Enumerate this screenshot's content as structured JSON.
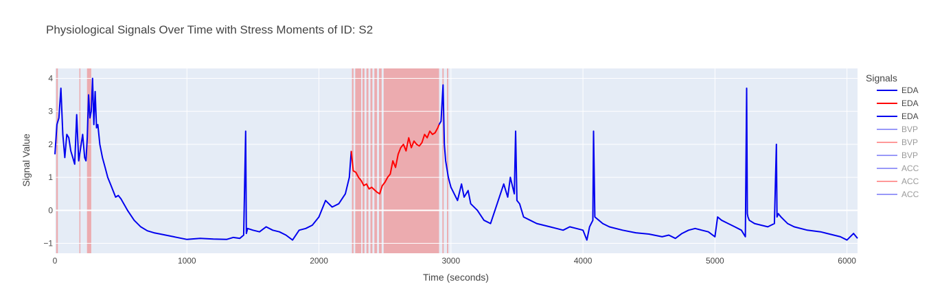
{
  "chart_data": {
    "type": "line",
    "title": "Physiological Signals Over Time with Stress Moments of ID: S2",
    "xlabel": "Time (seconds)",
    "ylabel": "Signal Value",
    "xlim": [
      0,
      6080
    ],
    "ylim": [
      -1.3,
      4.3
    ],
    "x_ticks": [
      0,
      1000,
      2000,
      3000,
      4000,
      5000,
      6000
    ],
    "y_ticks": [
      -1,
      0,
      1,
      2,
      3,
      4
    ],
    "grid": true,
    "legend": {
      "title": "Signals",
      "placement": "right"
    },
    "colors": {
      "normal": "#0000ee",
      "stress": "#ff0000",
      "stress_band": "#f08080",
      "plot_bg": "#e5ecf6"
    },
    "stress_bands": [
      [
        10,
        22
      ],
      [
        185,
        193
      ],
      [
        243,
        275
      ],
      [
        2250,
        2262
      ],
      [
        2275,
        2320
      ],
      [
        2330,
        2345
      ],
      [
        2360,
        2375
      ],
      [
        2390,
        2405
      ],
      [
        2420,
        2440
      ],
      [
        2455,
        2475
      ],
      [
        2490,
        2910
      ],
      [
        2935,
        2945
      ],
      [
        2970,
        2980
      ]
    ],
    "series": [
      {
        "name": "EDA",
        "color": "#0000ee",
        "opacity": 1,
        "segment": "normal",
        "x": [
          0,
          15,
          30,
          45,
          60,
          75,
          90,
          105,
          120,
          135,
          150,
          165,
          180,
          195,
          210,
          225,
          235,
          245,
          255,
          265,
          275,
          285,
          295,
          305,
          315,
          325,
          340,
          360,
          380,
          400,
          420,
          440,
          460,
          480,
          500,
          550,
          600,
          650,
          700,
          750,
          800,
          900,
          1000,
          1100,
          1200,
          1300,
          1350,
          1400,
          1430,
          1445,
          1450,
          1460,
          1500,
          1550,
          1600,
          1650,
          1700,
          1750,
          1800,
          1850,
          1900,
          1950,
          2000,
          2050,
          2100,
          2150,
          2200,
          2230,
          2245
        ],
        "y": [
          1.7,
          2.6,
          2.8,
          3.7,
          2.3,
          1.6,
          2.3,
          2.2,
          1.8,
          1.6,
          1.4,
          2.9,
          1.5,
          1.9,
          2.3,
          1.6,
          1.5,
          2.2,
          3.5,
          2.8,
          3.0,
          4.0,
          2.6,
          3.6,
          2.5,
          2.6,
          2.0,
          1.6,
          1.3,
          1.0,
          0.8,
          0.6,
          0.4,
          0.45,
          0.35,
          0.0,
          -0.3,
          -0.5,
          -0.62,
          -0.68,
          -0.72,
          -0.8,
          -0.88,
          -0.85,
          -0.87,
          -0.88,
          -0.82,
          -0.85,
          -0.75,
          2.4,
          -0.7,
          -0.55,
          -0.6,
          -0.65,
          -0.5,
          -0.6,
          -0.65,
          -0.75,
          -0.9,
          -0.6,
          -0.55,
          -0.45,
          -0.2,
          0.3,
          0.1,
          0.2,
          0.5,
          1.0,
          1.8
        ]
      },
      {
        "name": "EDA",
        "color": "#ff0000",
        "opacity": 1,
        "segment": "stress",
        "x": [
          2245,
          2260,
          2280,
          2300,
          2320,
          2340,
          2360,
          2380,
          2400,
          2420,
          2440,
          2460,
          2480,
          2500,
          2520,
          2540,
          2560,
          2580,
          2600,
          2620,
          2640,
          2660,
          2680,
          2700,
          2720,
          2740,
          2760,
          2780,
          2800,
          2820,
          2840,
          2860,
          2880,
          2900,
          2910
        ],
        "y": [
          1.8,
          1.2,
          1.15,
          1.0,
          0.9,
          0.75,
          0.8,
          0.65,
          0.7,
          0.62,
          0.55,
          0.5,
          0.75,
          0.85,
          1.0,
          1.1,
          1.5,
          1.3,
          1.7,
          1.9,
          2.0,
          1.8,
          2.2,
          1.9,
          2.1,
          2.0,
          1.95,
          2.05,
          2.3,
          2.2,
          2.4,
          2.3,
          2.35,
          2.5,
          2.6
        ]
      },
      {
        "name": "EDA",
        "color": "#0000ee",
        "opacity": 1,
        "segment": "normal",
        "x": [
          2910,
          2925,
          2940,
          2950,
          2960,
          2980,
          3000,
          3050,
          3080,
          3100,
          3130,
          3150,
          3200,
          3250,
          3300,
          3350,
          3400,
          3430,
          3450,
          3480,
          3490,
          3500,
          3520,
          3550,
          3600,
          3650,
          3700,
          3750,
          3800,
          3850,
          3900,
          3950,
          4000,
          4030,
          4050,
          4075,
          4080,
          4090,
          4120,
          4150,
          4200,
          4300,
          4400,
          4500,
          4600,
          4650,
          4700,
          4750,
          4800,
          4850,
          4900,
          4950,
          5000,
          5020,
          5050,
          5100,
          5150,
          5200,
          5230,
          5240,
          5245,
          5250,
          5260,
          5300,
          5350,
          5400,
          5450,
          5465,
          5470,
          5480,
          5500,
          5550,
          5600,
          5700,
          5800,
          5850,
          5900,
          5950,
          6000,
          6050,
          6080
        ],
        "y": [
          2.6,
          2.7,
          3.8,
          2.0,
          1.5,
          1.0,
          0.7,
          0.3,
          0.8,
          0.4,
          0.6,
          0.2,
          0.0,
          -0.3,
          -0.4,
          0.2,
          0.8,
          0.4,
          1.0,
          0.5,
          2.4,
          0.3,
          0.2,
          -0.2,
          -0.3,
          -0.4,
          -0.45,
          -0.5,
          -0.55,
          -0.6,
          -0.5,
          -0.55,
          -0.6,
          -0.9,
          -0.5,
          -0.3,
          2.4,
          -0.2,
          -0.3,
          -0.4,
          -0.5,
          -0.6,
          -0.68,
          -0.72,
          -0.8,
          -0.75,
          -0.85,
          -0.7,
          -0.6,
          -0.55,
          -0.6,
          -0.65,
          -0.8,
          -0.2,
          -0.3,
          -0.4,
          -0.5,
          -0.6,
          -0.8,
          3.7,
          -0.1,
          -0.2,
          -0.3,
          -0.4,
          -0.45,
          -0.5,
          -0.4,
          2.0,
          -0.2,
          -0.1,
          -0.2,
          -0.4,
          -0.5,
          -0.6,
          -0.65,
          -0.7,
          -0.75,
          -0.8,
          -0.9,
          -0.7,
          -0.85
        ]
      },
      {
        "name": "BVP",
        "color": "#0000ee",
        "opacity": 0.4,
        "segment": "hidden",
        "x": [],
        "y": []
      },
      {
        "name": "BVP",
        "color": "#ff0000",
        "opacity": 0.4,
        "segment": "hidden",
        "x": [],
        "y": []
      },
      {
        "name": "BVP",
        "color": "#0000ee",
        "opacity": 0.4,
        "segment": "hidden",
        "x": [],
        "y": []
      },
      {
        "name": "ACC",
        "color": "#0000ee",
        "opacity": 0.4,
        "segment": "hidden",
        "x": [],
        "y": []
      },
      {
        "name": "ACC",
        "color": "#ff0000",
        "opacity": 0.4,
        "segment": "hidden",
        "x": [],
        "y": []
      },
      {
        "name": "ACC",
        "color": "#0000ee",
        "opacity": 0.4,
        "segment": "hidden",
        "x": [],
        "y": []
      }
    ]
  }
}
